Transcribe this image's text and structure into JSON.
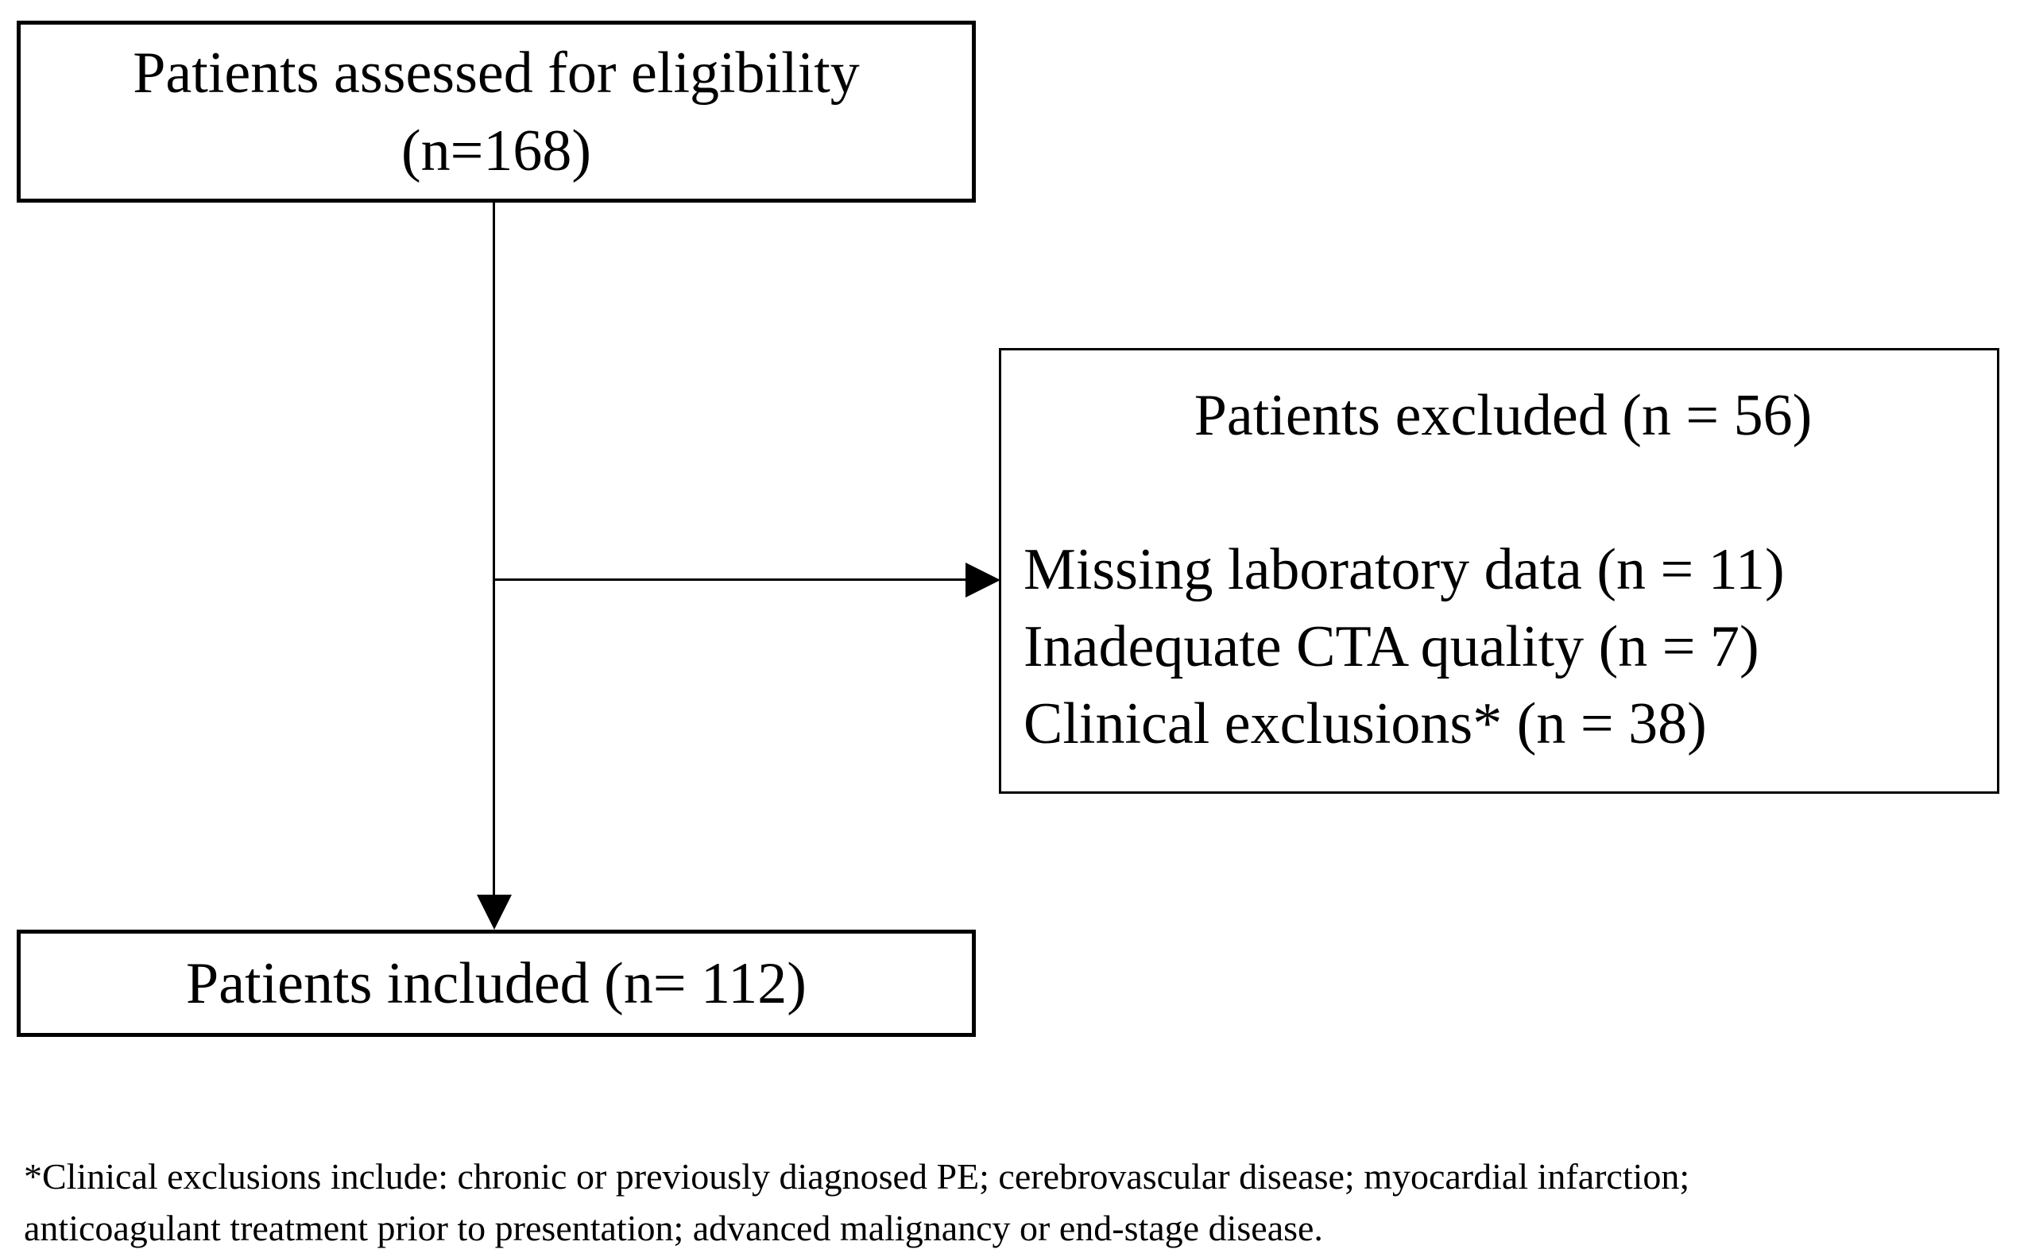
{
  "diagram": {
    "top_box": {
      "line1": "Patients assessed for eligibility",
      "line2": "(n=168)"
    },
    "excluded_box": {
      "title": "Patients excluded (n = 56)",
      "items": [
        "Missing laboratory data (n = 11)",
        "Inadequate CTA quality (n = 7)",
        "Clinical exclusions* (n = 38)"
      ]
    },
    "included_box": {
      "label": "Patients included (n= 112)"
    },
    "footnote": {
      "line1": "*Clinical exclusions include: chronic or previously diagnosed PE; cerebrovascular disease; myocardial infarction;",
      "line2": "anticoagulant treatment prior to presentation; advanced malignancy or end-stage disease."
    },
    "colors": {
      "line": "#000000",
      "text": "#000000",
      "background": "#ffffff"
    }
  }
}
